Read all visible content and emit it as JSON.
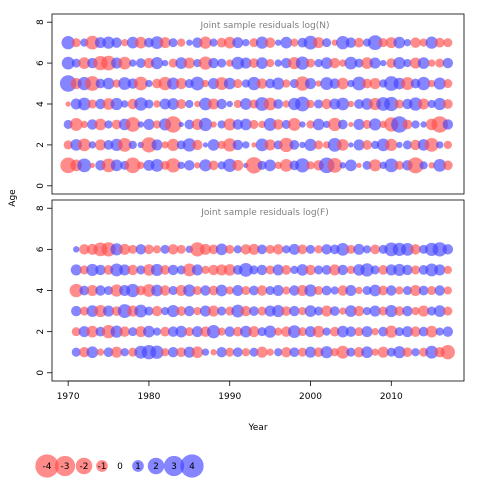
{
  "chart_data": {
    "type": "scatter",
    "subtype": "bubble-residuals",
    "xlabel": "Year",
    "ylabel": "Age",
    "xlim": [
      1968,
      2019
    ],
    "ylim": [
      -0.4,
      8.4
    ],
    "x_ticks": [
      "1970",
      "1980",
      "1990",
      "2000",
      "2010"
    ],
    "y_ticks": [
      "0",
      "2",
      "4",
      "6",
      "8"
    ],
    "colors": {
      "positive": "#4444ff",
      "negative": "#ff4d4d"
    },
    "panels": [
      {
        "title": "Joint sample residuals log(N)",
        "ages": [
          1,
          2,
          3,
          4,
          5,
          6,
          7
        ],
        "year_start": 1970,
        "year_end": 2017,
        "residuals": [
          [
            -1.8,
            -1.0,
            1.4,
            -0.2,
            0.8,
            -1.4,
            1.0,
            0.6,
            -1.8,
            -0.4,
            0.9,
            1.2,
            -0.6,
            -1.5,
            0.4,
            0.8,
            -0.3,
            1.1,
            -0.7,
            0.5,
            1.3,
            -0.9,
            0.2,
            -2.0,
            0.6,
            1.0,
            -0.4,
            -1.2,
            0.7,
            1.5,
            -0.5,
            -0.8,
            1.8,
            -1.6,
            0.3,
            1.0,
            -0.2,
            0.6,
            -1.1,
            0.4,
            1.4,
            -0.6,
            0.8,
            -1.9,
            0.5,
            -0.3,
            1.2,
            -0.7
          ],
          [
            -0.6,
            1.0,
            -1.2,
            0.4,
            -0.9,
            0.7,
            1.1,
            -1.4,
            0.5,
            0.3,
            -1.7,
            0.9,
            -0.4,
            -1.1,
            0.6,
            1.3,
            -0.8,
            0.2,
            1.0,
            -0.5,
            -1.3,
            0.8,
            0.4,
            -0.2,
            1.2,
            -0.9,
            0.6,
            -1.5,
            0.7,
            0.3,
            1.1,
            -0.6,
            -0.4,
            1.4,
            -1.0,
            0.2,
            0.9,
            -0.7,
            0.5,
            1.2,
            -1.1,
            0.3,
            0.6,
            -0.8,
            1.0,
            -1.4,
            0.4,
            -0.5
          ],
          [
            0.6,
            -1.2,
            -0.4,
            0.8,
            -1.0,
            0.5,
            -0.7,
            1.0,
            -1.6,
            0.3,
            0.9,
            -0.5,
            1.1,
            -2.0,
            0.2,
            0.7,
            -0.9,
            1.3,
            -0.3,
            0.5,
            -1.1,
            0.8,
            1.0,
            -0.6,
            -0.4,
            1.2,
            -0.8,
            0.6,
            -1.2,
            0.3,
            -0.5,
            1.0,
            0.4,
            -1.3,
            0.7,
            -0.2,
            0.9,
            -0.6,
            1.1,
            -0.4,
            -1.5,
            2.0,
            -0.7,
            0.5,
            0.3,
            -1.0,
            -2.0,
            0.8
          ],
          [
            -0.2,
            0.9,
            1.2,
            -0.6,
            0.8,
            -1.0,
            1.1,
            0.4,
            -0.8,
            1.3,
            0.6,
            -0.4,
            0.9,
            1.0,
            -0.7,
            0.5,
            -0.3,
            1.2,
            -0.9,
            0.8,
            0.3,
            -0.5,
            1.0,
            -0.6,
            1.4,
            -1.2,
            0.7,
            -0.4,
            1.1,
            1.6,
            -0.5,
            0.6,
            -0.8,
            0.9,
            1.2,
            -0.3,
            0.7,
            1.0,
            -1.1,
            1.4,
            1.5,
            -0.6,
            0.8,
            1.3,
            -0.9,
            0.5,
            1.1,
            -0.7
          ],
          [
            2.0,
            -0.9,
            1.3,
            -1.6,
            0.7,
            1.0,
            -0.5,
            1.2,
            0.8,
            -1.4,
            0.4,
            -0.7,
            -1.3,
            1.1,
            -0.9,
            0.6,
            1.4,
            -0.4,
            0.9,
            -1.2,
            1.0,
            -0.6,
            0.5,
            1.3,
            -0.8,
            0.7,
            1.1,
            -0.5,
            0.6,
            -1.5,
            0.9,
            -0.3,
            1.2,
            0.8,
            -1.0,
            0.4,
            1.4,
            -0.7,
            -0.9,
            0.5,
            1.6,
            1.0,
            -1.2,
            0.7,
            1.3,
            -0.4,
            1.1,
            -0.6
          ],
          [
            1.2,
            0.6,
            -1.0,
            0.8,
            -1.5,
            -1.6,
            0.9,
            -1.2,
            0.4,
            0.7,
            -0.8,
            1.1,
            0.3,
            -0.6,
            1.0,
            -0.9,
            0.5,
            -1.3,
            0.8,
            0.6,
            -0.4,
            1.2,
            0.9,
            -0.7,
            1.0,
            -0.5,
            0.4,
            0.8,
            -1.1,
            1.3,
            -0.6,
            0.5,
            1.0,
            -0.8,
            -0.4,
            1.2,
            0.6,
            -1.0,
            0.9,
            0.3,
            -0.7,
            1.1,
            0.5,
            -0.9,
            1.0,
            -0.4,
            -0.6,
            0.8
          ],
          [
            1.3,
            -0.6,
            0.5,
            -1.4,
            0.9,
            1.1,
            0.8,
            -0.4,
            1.0,
            -1.0,
            0.7,
            1.2,
            -0.9,
            0.6,
            -0.5,
            0.3,
            0.8,
            -1.1,
            0.5,
            -0.7,
            -1.0,
            0.9,
            0.4,
            -0.6,
            1.1,
            -0.8,
            0.3,
            1.0,
            -0.5,
            0.7,
            1.4,
            -0.9,
            0.6,
            -0.3,
            1.3,
            0.8,
            -0.7,
            0.5,
            1.6,
            -0.6,
            -0.9,
            1.0,
            0.4,
            -0.8,
            -0.5,
            1.1,
            -0.7,
            -0.6
          ]
        ]
      },
      {
        "title": "Joint sample residuals log(F)",
        "ages": [
          1,
          2,
          3,
          4,
          5,
          6
        ],
        "year_start": 1971,
        "year_end": 2017,
        "residuals": [
          [
            0.6,
            -0.8,
            1.0,
            -0.4,
            0.7,
            -0.9,
            0.5,
            -0.6,
            1.2,
            1.5,
            1.3,
            -0.5,
            0.8,
            -0.7,
            0.9,
            -1.0,
            0.4,
            -0.3,
            0.8,
            -0.6,
            0.7,
            -0.5,
            0.6,
            -0.9,
            -0.4,
            0.5,
            -0.8,
            0.7,
            -0.6,
            0.9,
            -0.7,
            1.1,
            -0.5,
            -1.2,
            0.6,
            -0.8,
            1.0,
            -0.4,
            -0.9,
            0.6,
            1.1,
            -0.7,
            0.5,
            -0.6,
            1.2,
            -0.8,
            -1.5
          ],
          [
            -0.6,
            0.9,
            -1.0,
            0.7,
            -1.3,
            1.1,
            -0.8,
            0.6,
            -0.9,
            1.0,
            0.5,
            -0.7,
            0.8,
            1.0,
            -0.6,
            0.9,
            -0.8,
            1.3,
            -0.5,
            0.8,
            -0.7,
            1.0,
            -0.9,
            0.6,
            1.1,
            -0.5,
            -0.8,
            1.2,
            -0.6,
            0.9,
            -1.0,
            0.5,
            -0.7,
            1.0,
            0.8,
            -0.6,
            0.9,
            -0.4,
            0.7,
            -1.1,
            0.6,
            0.9,
            -0.8,
            0.7,
            -1.0,
            0.5,
            0.8
          ],
          [
            0.8,
            -0.6,
            1.0,
            -1.1,
            0.9,
            -0.7,
            1.4,
            -0.9,
            1.2,
            0.6,
            -0.8,
            0.5,
            1.1,
            -0.7,
            0.8,
            -0.5,
            0.9,
            -0.9,
            0.6,
            -0.6,
            1.2,
            -0.8,
            0.7,
            -0.6,
            0.9,
            1.1,
            -0.7,
            0.8,
            -0.5,
            1.0,
            0.6,
            -0.9,
            0.7,
            -0.4,
            1.0,
            -0.8,
            0.5,
            0.9,
            -0.6,
            1.1,
            -0.7,
            0.8,
            -0.5,
            -0.9,
            0.6,
            1.0,
            -0.6
          ],
          [
            -1.3,
            0.7,
            -0.9,
            0.8,
            0.6,
            -1.1,
            0.9,
            1.3,
            -0.7,
            -1.2,
            1.0,
            -0.8,
            0.6,
            -0.9,
            1.1,
            -0.6,
            0.8,
            -0.7,
            1.0,
            -0.5,
            0.9,
            -0.6,
            0.7,
            -0.8,
            0.6,
            0.9,
            -0.5,
            0.8,
            -0.9,
            1.1,
            -0.6,
            0.7,
            0.5,
            -0.8,
            0.9,
            -0.4,
            0.6,
            1.0,
            -0.7,
            0.8,
            -0.5,
            0.6,
            -0.9,
            0.7,
            -0.6,
            0.8,
            -0.5
          ],
          [
            0.9,
            -0.6,
            1.1,
            0.8,
            -0.7,
            1.2,
            0.9,
            -0.8,
            0.6,
            -1.0,
            1.1,
            -0.7,
            0.8,
            0.6,
            -1.2,
            0.9,
            -0.5,
            -0.8,
            -0.9,
            -1.0,
            0.7,
            1.4,
            0.6,
            0.8,
            -0.6,
            0.9,
            -0.7,
            0.5,
            1.0,
            -0.8,
            0.6,
            0.7,
            -0.9,
            0.8,
            -0.5,
            1.0,
            1.3,
            0.6,
            -0.7,
            0.9,
            1.1,
            0.8,
            -0.6,
            0.7,
            1.2,
            0.9,
            -0.5
          ],
          [
            0.3,
            -0.8,
            -0.9,
            -1.4,
            -1.5,
            1.1,
            -0.9,
            -0.6,
            0.8,
            -0.7,
            -0.5,
            0.6,
            -0.8,
            -0.6,
            0.4,
            -1.5,
            -0.9,
            -0.7,
            1.0,
            -0.6,
            0.5,
            -0.8,
            -0.9,
            0.7,
            -0.6,
            -0.8,
            0.5,
            0.9,
            -0.7,
            0.6,
            -0.5,
            0.8,
            0.7,
            1.2,
            -0.6,
            0.9,
            0.5,
            -0.7,
            0.6,
            1.4,
            1.3,
            1.2,
            -0.8,
            0.6,
            1.3,
            1.5,
            0.8
          ]
        ]
      }
    ],
    "legend": {
      "position": "bottom-left",
      "values": [
        -4,
        -3,
        -2,
        -1,
        0,
        1,
        2,
        3,
        4
      ],
      "labels": [
        "-4",
        "-3",
        "-2",
        "-1",
        "0",
        "1",
        "2",
        "3",
        "4"
      ]
    }
  }
}
